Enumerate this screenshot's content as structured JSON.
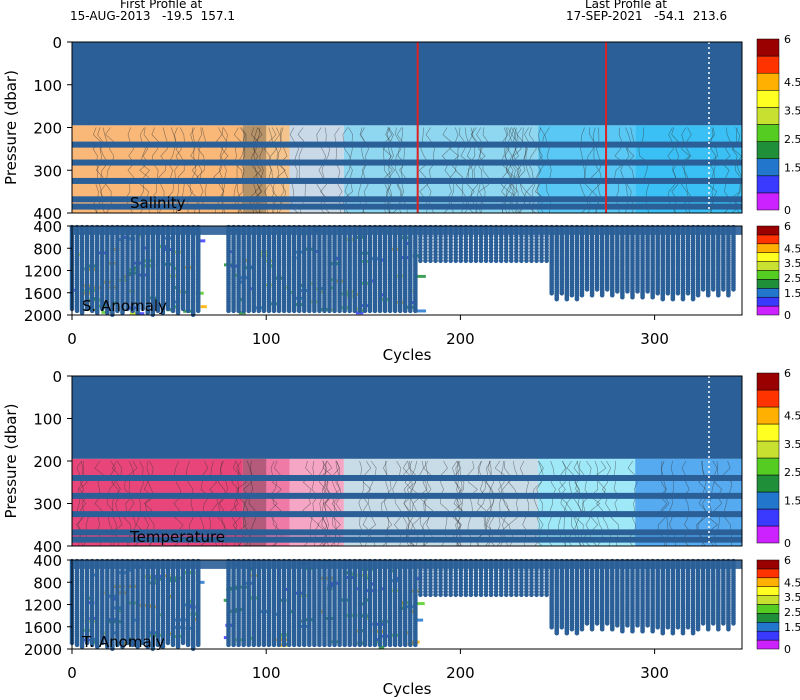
{
  "header": {
    "first_profile_label": "First Profile at",
    "first_profile_info": "15-AUG-2013   -19.5  157.1",
    "last_profile_label": "Last Profile at",
    "last_profile_info": "17-SEP-2021   -54.1  213.6"
  },
  "colors": {
    "profile_dots": "#2a5f98",
    "colorbar": [
      "#cc22ff",
      "#3a3aff",
      "#2277cc",
      "#1f8f3a",
      "#55cc22",
      "#c8e030",
      "#ffff22",
      "#ffb000",
      "#ff3300",
      "#9a0000"
    ],
    "salinity_bands": [
      "#f9b778",
      "#f5c48c",
      "#c9d9e8",
      "#8fd6f0",
      "#5ac8f5",
      "#3ac0f4"
    ],
    "temperature_bands": [
      "#e8467a",
      "#f07aa6",
      "#f5a6c4",
      "#c8dce8",
      "#9ee8f8",
      "#55aaf0"
    ],
    "red_line": "#dd2222"
  },
  "chart_data": [
    {
      "type": "heatmap",
      "name_label": "Salinity",
      "ylabel": "Pressure (dbar)",
      "yticks": [
        "0",
        "100",
        "200",
        "300",
        "400"
      ],
      "ylim": [
        0,
        400
      ],
      "xlim": [
        0,
        345
      ],
      "colorbar_ticks": [
        "0",
        "1.5",
        "2.5",
        "3.5",
        "4.5",
        "6"
      ],
      "red_line_cycles": [
        178,
        275
      ],
      "white_dotted_cycle": 328
    },
    {
      "type": "heatmap",
      "name_label": "S. Anomaly",
      "yticks": [
        "400",
        "800",
        "1200",
        "1600",
        "2000"
      ],
      "ylim": [
        400,
        2000
      ],
      "colorbar_ticks": [
        "0",
        "1.5",
        "2.5",
        "3.5",
        "4.5",
        "6"
      ],
      "gap_cycles": [
        [
          67,
          78
        ],
        [
          178,
          245
        ]
      ],
      "xticks": [
        "0",
        "100",
        "200",
        "300"
      ],
      "xlabel": "Cycles"
    },
    {
      "type": "heatmap",
      "name_label": "Temperature",
      "ylabel": "Pressure (dbar)",
      "yticks": [
        "0",
        "100",
        "200",
        "300",
        "400"
      ],
      "ylim": [
        0,
        400
      ],
      "xlim": [
        0,
        345
      ],
      "colorbar_ticks": [
        "0",
        "1.5",
        "2.5",
        "3.5",
        "4.5",
        "6"
      ],
      "white_dotted_cycle": 328
    },
    {
      "type": "heatmap",
      "name_label": "T. Anomaly",
      "yticks": [
        "400",
        "800",
        "1200",
        "1600",
        "2000"
      ],
      "ylim": [
        400,
        2000
      ],
      "colorbar_ticks": [
        "0",
        "1.5",
        "2.5",
        "3.5",
        "4.5",
        "6"
      ],
      "gap_cycles": [
        [
          67,
          78
        ],
        [
          178,
          245
        ]
      ],
      "xticks": [
        "0",
        "100",
        "200",
        "300"
      ],
      "xlabel": "Cycles"
    }
  ]
}
